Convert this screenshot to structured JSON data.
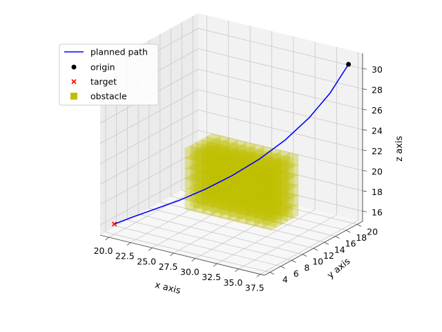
{
  "chart_data": {
    "type": "scatter",
    "subtype": "3d-path-planning",
    "title": "",
    "xlabel": "x axis",
    "ylabel": "y axis",
    "zlabel": "z axis",
    "xlim": [
      19,
      38
    ],
    "ylim": [
      3,
      21
    ],
    "zlim": [
      15,
      31.5
    ],
    "x_ticks": [
      "20.0",
      "22.5",
      "25.0",
      "27.5",
      "30.0",
      "32.5",
      "35.0",
      "37.5"
    ],
    "y_ticks": [
      "4",
      "6",
      "8",
      "10",
      "12",
      "14",
      "16",
      "18",
      "20"
    ],
    "z_ticks": [
      "16",
      "18",
      "20",
      "22",
      "24",
      "26",
      "28",
      "30"
    ],
    "grid": true,
    "legend_position": "top-left",
    "legend": [
      {
        "key": "path",
        "label": "planned path",
        "marker": "line",
        "color": "#0000ff"
      },
      {
        "key": "origin",
        "label": "origin",
        "marker": "circle",
        "color": "#000000"
      },
      {
        "key": "target",
        "label": "target",
        "marker": "x",
        "color": "#ff0000"
      },
      {
        "key": "obstacle",
        "label": "obstacle",
        "marker": "square",
        "color": "#bfbf00"
      }
    ],
    "origin": {
      "x": 37,
      "y": 20,
      "z": 30.5
    },
    "target": {
      "x": 20,
      "y": 4,
      "z": 16
    },
    "path": {
      "x": [
        20,
        21.5,
        23.3,
        25.3,
        27.4,
        29.5,
        31.5,
        33.3,
        34.8,
        36.0,
        37
      ],
      "y": [
        4,
        5.1,
        6.2,
        7.5,
        9.0,
        10.6,
        12.4,
        14.3,
        16.3,
        18.2,
        20
      ],
      "z": [
        16,
        16.7,
        17.5,
        18.4,
        19.5,
        20.8,
        22.3,
        24.0,
        25.9,
        28.0,
        30.5
      ]
    },
    "obstacle": {
      "x_range": [
        25,
        35
      ],
      "y_range": [
        9,
        14
      ],
      "z_range": [
        17,
        23
      ],
      "step": 1,
      "color": "#bfbf00"
    }
  }
}
